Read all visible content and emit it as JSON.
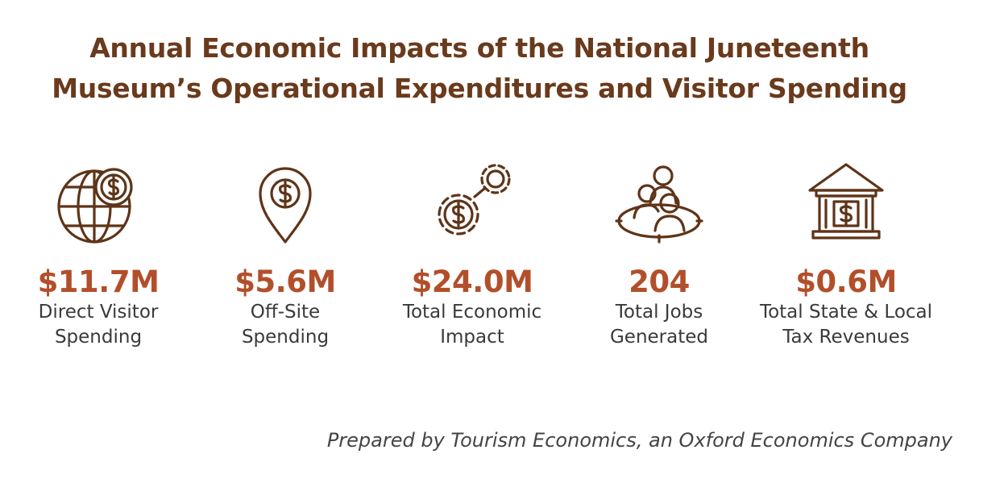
{
  "header": {
    "title_lines": [
      "Annual Economic Impacts of the National Juneteenth",
      "Museum’s Operational Expenditures and Visitor Spending"
    ]
  },
  "stats": [
    {
      "value": "$11.7M",
      "label_lines": [
        "Direct Visitor",
        "Spending"
      ]
    },
    {
      "value": "$5.6M",
      "label_lines": [
        "Off-Site",
        "Spending"
      ]
    },
    {
      "value": "$24.0M",
      "label_lines": [
        "Total Economic",
        "Impact"
      ]
    },
    {
      "value": "204",
      "label_lines": [
        "Total Jobs",
        "Generated"
      ]
    },
    {
      "value": "$0.6M",
      "label_lines": [
        "Total State & Local",
        "Tax Revenues"
      ]
    }
  ],
  "footer": {
    "credit": "Prepared by Tourism Economics, an Oxford Economics Company"
  }
}
